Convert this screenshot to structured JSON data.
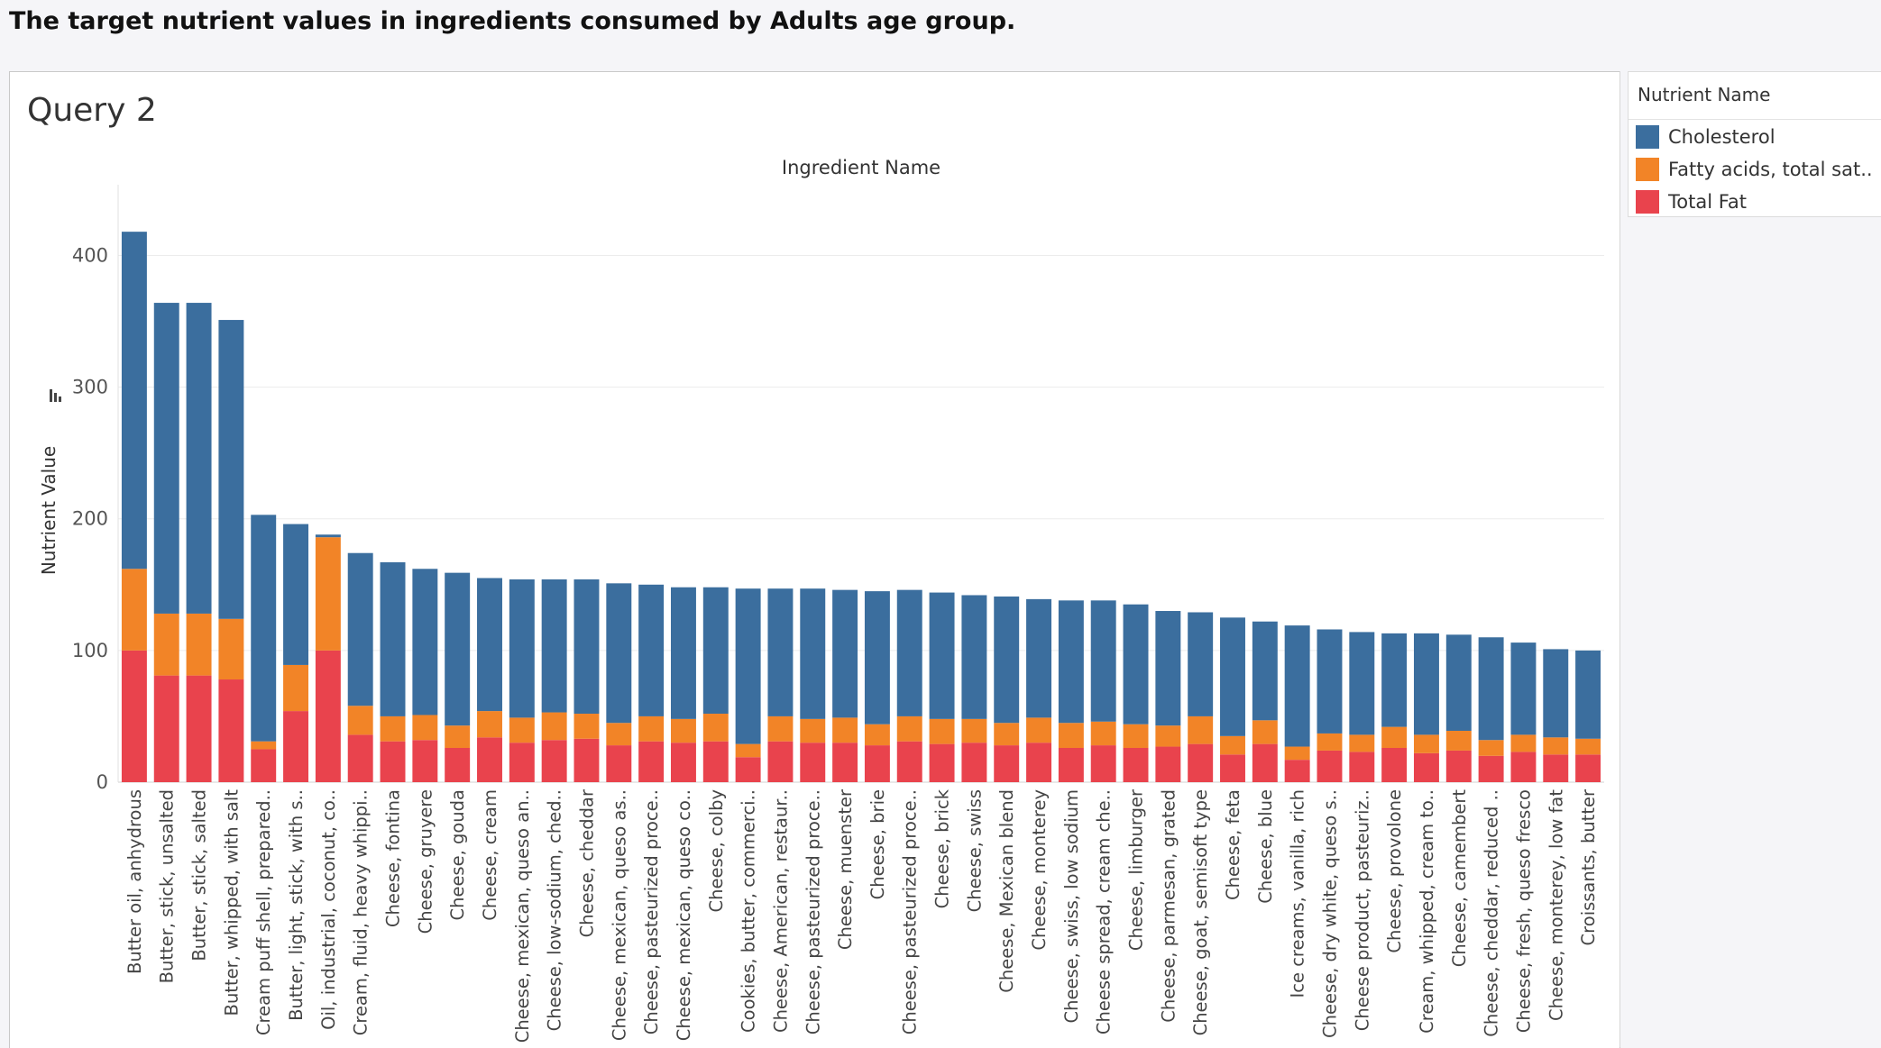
{
  "header": {
    "title": "The target nutrient values in ingredients consumed by Adults age group."
  },
  "sheet": {
    "title": "Query 2"
  },
  "legend": {
    "title": "Nutrient Name",
    "items": [
      {
        "label": "Cholesterol",
        "color": "#3b6e9e"
      },
      {
        "label": "Fatty acids, total sat..",
        "color": "#f28427"
      },
      {
        "label": "Total Fat",
        "color": "#e9434d"
      }
    ]
  },
  "chart_data": {
    "type": "bar",
    "stacked": true,
    "title": "Ingredient Name",
    "xlabel": "",
    "ylabel": "Nutrient Value",
    "ylim": [
      0,
      440
    ],
    "yticks": [
      0,
      100,
      200,
      300,
      400
    ],
    "grid": true,
    "legend_position": "right",
    "categories": [
      "Butter oil, anhydrous",
      "Butter, stick, unsalted",
      "Butter, stick, salted",
      "Butter, whipped, with salt",
      "Cream puff shell, prepared..",
      "Butter, light, stick, with s..",
      "Oil, industrial, coconut, co..",
      "Cream, fluid, heavy whippi..",
      "Cheese, fontina",
      "Cheese, gruyere",
      "Cheese, gouda",
      "Cheese, cream",
      "Cheese, mexican, queso an..",
      "Cheese, low-sodium, ched..",
      "Cheese, cheddar",
      "Cheese, mexican, queso as..",
      "Cheese, pasteurized proce..",
      "Cheese, mexican, queso co..",
      "Cheese, colby",
      "Cookies, butter, commerci..",
      "Cheese, American, restaur..",
      "Cheese, pasteurized proce..",
      "Cheese, muenster",
      "Cheese, brie",
      "Cheese, pasteurized proce..",
      "Cheese, brick",
      "Cheese, swiss",
      "Cheese, Mexican blend",
      "Cheese, monterey",
      "Cheese, swiss, low sodium",
      "Cheese spread, cream che..",
      "Cheese, limburger",
      "Cheese, parmesan, grated",
      "Cheese, goat, semisoft type",
      "Cheese, feta",
      "Cheese, blue",
      "Ice creams, vanilla, rich",
      "Cheese, dry white, queso s..",
      "Cheese product, pasteuriz..",
      "Cheese, provolone",
      "Cream, whipped, cream to..",
      "Cheese, camembert",
      "Cheese, cheddar, reduced ..",
      "Cheese, fresh, queso fresco",
      "Cheese, monterey, low fat",
      "Croissants, butter"
    ],
    "series": [
      {
        "name": "Total Fat",
        "color": "#e9434d",
        "values": [
          100,
          81,
          81,
          78,
          25,
          54,
          100,
          36,
          31,
          32,
          26,
          34,
          30,
          32,
          33,
          28,
          31,
          30,
          31,
          19,
          31,
          30,
          30,
          28,
          31,
          29,
          30,
          28,
          30,
          26,
          28,
          26,
          27,
          29,
          21,
          29,
          17,
          24,
          23,
          26,
          22,
          24,
          20,
          23,
          21,
          21
        ]
      },
      {
        "name": "Fatty acids, total sat..",
        "color": "#f28427",
        "values": [
          62,
          47,
          47,
          46,
          6,
          35,
          86,
          22,
          19,
          19,
          17,
          20,
          19,
          21,
          19,
          17,
          19,
          18,
          21,
          10,
          19,
          18,
          19,
          16,
          19,
          19,
          18,
          17,
          19,
          19,
          18,
          18,
          16,
          21,
          14,
          18,
          10,
          13,
          13,
          16,
          14,
          15,
          12,
          13,
          13,
          12
        ]
      },
      {
        "name": "Cholesterol",
        "color": "#3b6e9e",
        "values": [
          256,
          236,
          236,
          227,
          172,
          107,
          2,
          116,
          117,
          111,
          116,
          101,
          105,
          101,
          102,
          106,
          100,
          100,
          96,
          118,
          97,
          99,
          97,
          101,
          96,
          96,
          94,
          96,
          90,
          93,
          92,
          91,
          87,
          79,
          90,
          75,
          92,
          79,
          78,
          71,
          77,
          73,
          78,
          70,
          67,
          67
        ]
      }
    ]
  }
}
